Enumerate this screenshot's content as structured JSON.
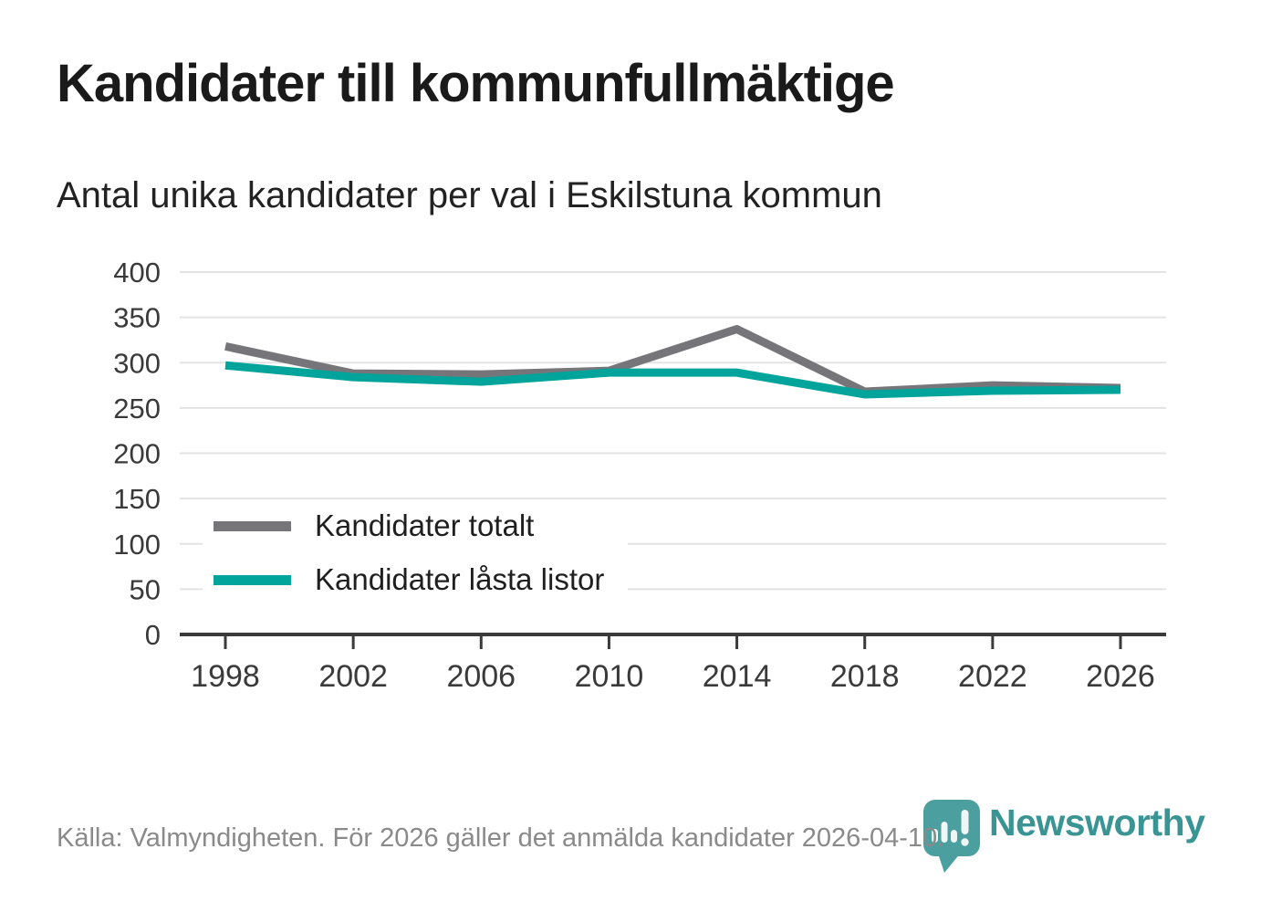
{
  "header": {
    "title": "Kandidater till kommunfullmäktige",
    "subtitle": "Antal unika kandidater per val i Eskilstuna kommun"
  },
  "chart_data": {
    "type": "line",
    "x": [
      1998,
      2002,
      2006,
      2010,
      2014,
      2018,
      2022,
      2026
    ],
    "series": [
      {
        "name": "Kandidater totalt",
        "color": "#76767a",
        "values": [
          318,
          288,
          287,
          291,
          337,
          268,
          275,
          272
        ]
      },
      {
        "name": "Kandidater låsta listor",
        "color": "#00a49b",
        "values": [
          297,
          284,
          279,
          289,
          289,
          265,
          269,
          270
        ]
      }
    ],
    "title": "Kandidater till kommunfullmäktige",
    "subtitle": "Antal unika kandidater per val i Eskilstuna kommun",
    "xlabel": "",
    "ylabel": "",
    "ylim": [
      0,
      400
    ],
    "yticks": [
      0,
      50,
      100,
      150,
      200,
      250,
      300,
      350,
      400
    ],
    "grid": true,
    "legend_position": "inside-left-bottom"
  },
  "footer": {
    "source": "Källa: Valmyndigheten. För 2026 gäller det anmälda kandidater 2026-04-10.",
    "brand": "Newsworthy"
  },
  "colors": {
    "grid": "#e3e3e3",
    "axis": "#3a3a3a",
    "tick_text": "#3a3a3a",
    "title_text": "#1a1a1a",
    "subtitle_text": "#222222",
    "source_text": "#8a8a8a",
    "brand_teal": "#3a9494",
    "logo_pin": "#4b9f9f",
    "logo_glyph": "#eef6f6"
  }
}
